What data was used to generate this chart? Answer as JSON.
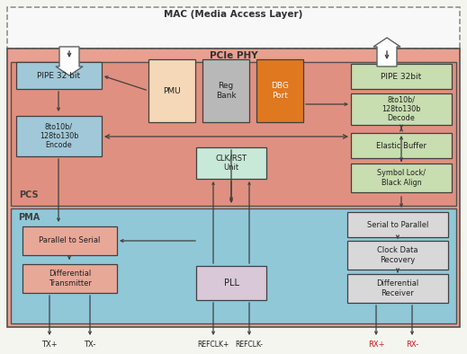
{
  "title": "MAC (Media Access Layer)",
  "pcie_phy_label": "PCIe PHY",
  "pcs_label": "PCS",
  "pma_label": "PMA",
  "bg_color": "#f5f5f0",
  "mac_bg": "#ffffff",
  "pcie_phy_bg": "#e8a090",
  "pcs_bg": "#e8a090",
  "pma_bg": "#b0d8e8",
  "block_blue": "#a0c8d8",
  "block_green": "#c8ddb0",
  "block_salmon": "#e8a898",
  "block_peach": "#f5d8b8",
  "block_gray": "#b8b8b8",
  "block_orange": "#e07820",
  "block_lavender": "#d8c8d8",
  "block_white": "#f0f0f0",
  "arrow_color": "#404040",
  "border_color": "#404040",
  "text_color": "#202020",
  "dashed_color": "#808080"
}
